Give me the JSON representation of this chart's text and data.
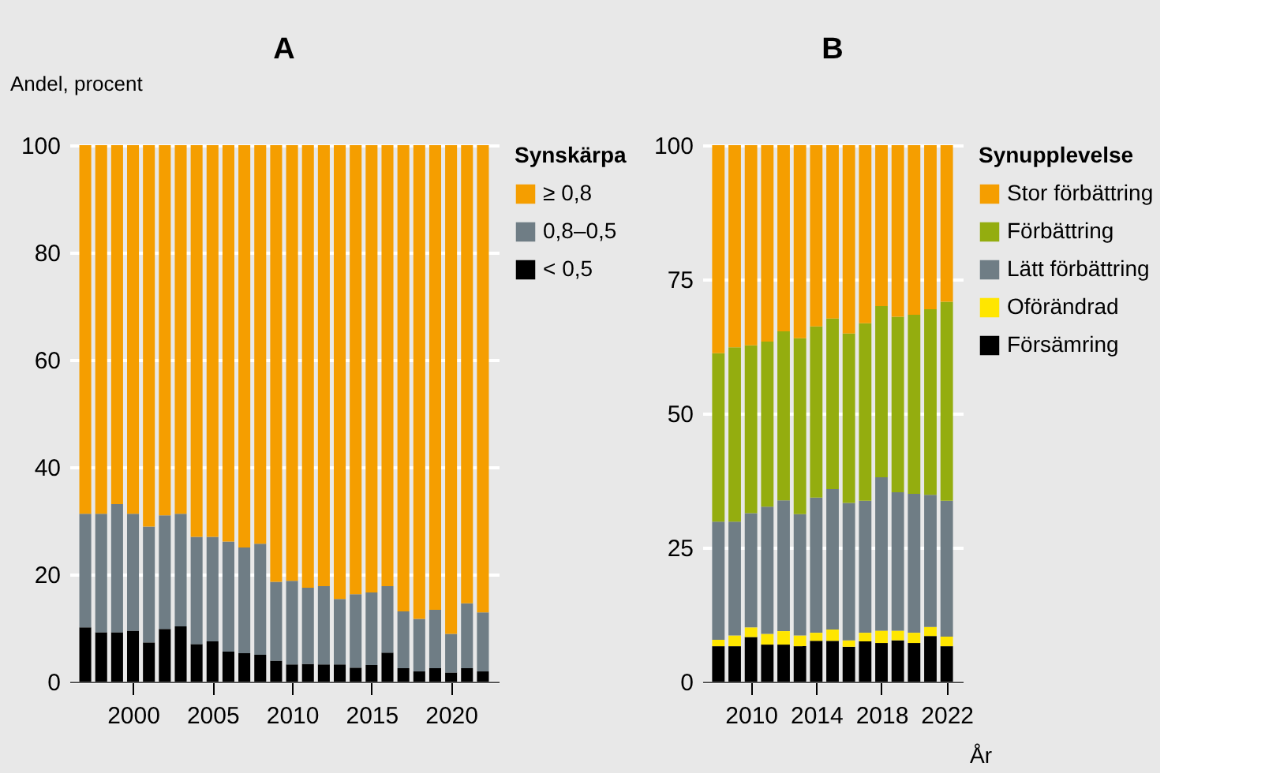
{
  "chart_data": [
    {
      "type": "bar",
      "title": "A",
      "ylabel": "Andel, procent",
      "legend_title": "Synskärpa",
      "stacked": true,
      "legend": "right",
      "grid": "y",
      "x": [
        1997,
        1998,
        1999,
        2000,
        2001,
        2002,
        2003,
        2004,
        2005,
        2006,
        2007,
        2008,
        2009,
        2010,
        2011,
        2012,
        2013,
        2014,
        2015,
        2016,
        2017,
        2018,
        2019,
        2020,
        2021,
        2022
      ],
      "xlim": [
        1996.5,
        2022.5
      ],
      "xticks": [
        2000,
        2005,
        2010,
        2015,
        2020
      ],
      "ylim": [
        0,
        100
      ],
      "yticks": [
        0,
        20,
        40,
        60,
        80,
        100
      ],
      "series": [
        {
          "name": "< 0,5",
          "color": "#000000",
          "values": [
            10.1,
            9.2,
            9.2,
            9.5,
            7.3,
            9.8,
            10.3,
            7.0,
            7.5,
            5.6,
            5.3,
            5.0,
            3.9,
            3.2,
            3.3,
            3.2,
            3.2,
            2.6,
            3.1,
            5.4,
            2.5,
            1.9,
            2.5,
            1.7,
            2.5,
            1.9
          ]
        },
        {
          "name": "0,8–0,5",
          "color": "#6f7d85",
          "values": [
            21.2,
            22.1,
            23.9,
            21.8,
            21.6,
            21.2,
            21.0,
            20.0,
            19.5,
            20.5,
            19.7,
            20.7,
            14.7,
            15.6,
            14.2,
            14.6,
            12.2,
            13.7,
            13.5,
            12.4,
            10.6,
            9.8,
            10.9,
            7.2,
            12.1,
            11.0
          ]
        },
        {
          "name": "≥ 0,8",
          "color": "#f59e00",
          "values": [
            68.7,
            68.7,
            66.9,
            68.7,
            71.1,
            69.0,
            68.7,
            73.0,
            73.0,
            73.9,
            75.0,
            74.3,
            81.4,
            81.2,
            82.5,
            82.2,
            84.6,
            83.7,
            83.4,
            82.2,
            86.9,
            88.3,
            86.6,
            91.1,
            85.4,
            87.1
          ]
        }
      ]
    },
    {
      "type": "bar",
      "title": "B",
      "xlabel": "År",
      "legend_title": "Synupplevelse",
      "stacked": true,
      "legend": "right",
      "grid": "y",
      "x": [
        2008,
        2009,
        2010,
        2011,
        2012,
        2013,
        2014,
        2015,
        2016,
        2017,
        2018,
        2019,
        2020,
        2021,
        2022
      ],
      "xlim": [
        2007.5,
        2022.5
      ],
      "xticks": [
        2010,
        2014,
        2018,
        2022
      ],
      "ylim": [
        0,
        100
      ],
      "yticks": [
        0,
        25,
        50,
        75,
        100
      ],
      "series": [
        {
          "name": "Försämring",
          "color": "#000000",
          "values": [
            6.6,
            6.6,
            8.3,
            6.9,
            6.9,
            6.6,
            7.6,
            7.6,
            6.5,
            7.5,
            7.2,
            7.7,
            7.2,
            8.5,
            6.6
          ]
        },
        {
          "name": "Oförändrad",
          "color": "#ffe600",
          "values": [
            1.2,
            2.0,
            1.8,
            2.0,
            2.5,
            2.0,
            1.5,
            2.1,
            1.2,
            1.6,
            2.3,
            1.8,
            1.9,
            1.7,
            1.8
          ]
        },
        {
          "name": "Lätt förbättring",
          "color": "#6f7d85",
          "values": [
            22.0,
            21.2,
            21.3,
            23.7,
            24.4,
            22.6,
            25.2,
            26.2,
            25.6,
            24.6,
            28.6,
            25.8,
            25.9,
            24.6,
            25.3
          ]
        },
        {
          "name": "Förbättring",
          "color": "#94ad0f",
          "values": [
            31.4,
            32.5,
            31.3,
            30.8,
            31.5,
            32.8,
            31.9,
            31.8,
            31.6,
            33.1,
            31.9,
            32.7,
            33.4,
            34.6,
            37.1
          ]
        },
        {
          "name": "Stor förbättring",
          "color": "#f59e00",
          "values": [
            38.8,
            37.7,
            37.3,
            36.6,
            34.7,
            36.0,
            33.8,
            32.3,
            35.1,
            33.2,
            30.0,
            32.0,
            31.6,
            30.6,
            29.2
          ]
        }
      ]
    }
  ]
}
